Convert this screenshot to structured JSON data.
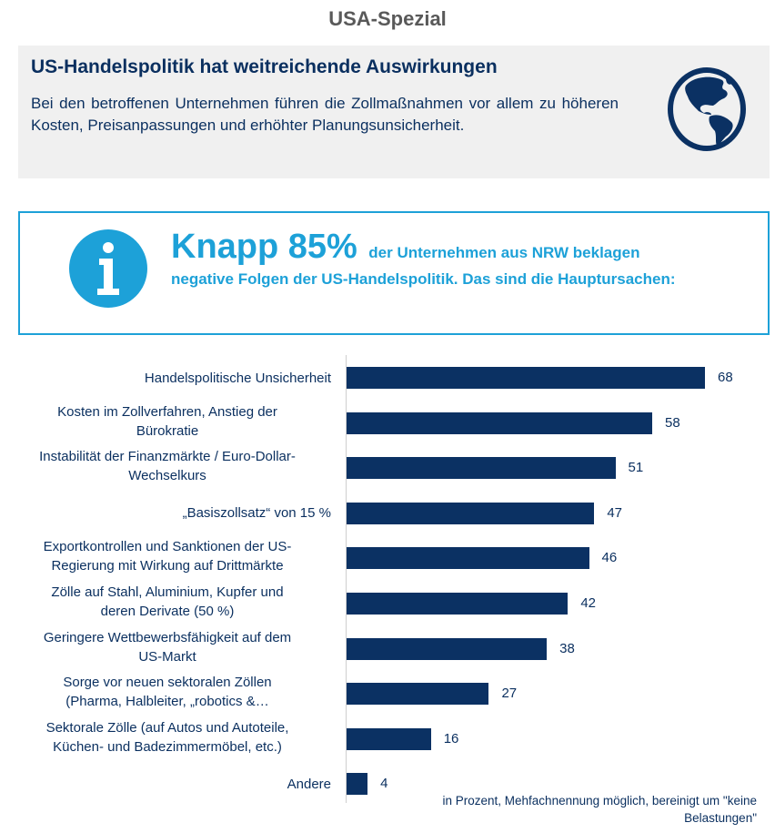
{
  "page": {
    "title": "USA-Spezial"
  },
  "summary": {
    "heading": "US-Handelspolitik hat weitreichende Auswirkungen",
    "text": "Bei den betroffenen Unternehmen führen die Zollmaßnahmen vor allem zu höheren Kosten, Preisanpassungen und erhöhter Planungsunsicherheit.",
    "icon": "globe-icon"
  },
  "info": {
    "icon": "info-icon",
    "highlight": "Knapp 85%",
    "text_inline": "der Unternehmen aus NRW beklagen",
    "text_rest": "negative Folgen der US-Handelspolitik. Das sind die Hauptursachen:"
  },
  "colors": {
    "navy": "#0b3163",
    "accent_blue": "#1da1d8",
    "title_gray": "#595959",
    "box_gray": "#f0f0f0"
  },
  "chart_data": {
    "type": "bar",
    "orientation": "horizontal",
    "title": "",
    "xlabel": "",
    "ylabel": "",
    "unit": "Prozent",
    "xlim": [
      0,
      70
    ],
    "grid": false,
    "categories": [
      "Handelspolitische Unsicherheit",
      "Kosten im Zollverfahren, Anstieg der Bürokratie",
      "Instabilität der Finanzmärkte / Euro-Dollar-Wechselkurs",
      "„Basiszollsatz“ von 15 %",
      "Exportkontrollen und Sanktionen der US-Regierung mit Wirkung auf Drittmärkte",
      "Zölle auf Stahl, Aluminium, Kupfer und deren Derivate (50 %)",
      "Geringere Wettbewerbsfähigkeit auf dem US-Markt",
      "Sorge vor neuen sektoralen Zöllen (Pharma, Halbleiter, „robotics &…",
      "Sektorale Zölle (auf Autos und Autoteile, Küchen- und Badezimmermöbel, etc.)",
      "Andere"
    ],
    "label_lines": [
      [
        "Handelspolitische Unsicherheit"
      ],
      [
        "Kosten im Zollverfahren, Anstieg der",
        "Bürokratie"
      ],
      [
        "Instabilität der Finanzmärkte / Euro-Dollar-",
        "Wechselkurs"
      ],
      [
        "„Basiszollsatz“ von 15 %"
      ],
      [
        "Exportkontrollen und Sanktionen der US-",
        "Regierung mit Wirkung auf Drittmärkte"
      ],
      [
        "Zölle auf Stahl, Aluminium, Kupfer und",
        "deren Derivate (50 %)"
      ],
      [
        "Geringere Wettbewerbsfähigkeit auf dem",
        "US-Markt"
      ],
      [
        "Sorge vor neuen sektoralen Zöllen",
        "(Pharma, Halbleiter, „robotics &…"
      ],
      [
        "Sektorale Zölle (auf Autos und Autoteile,",
        "Küchen- und Badezimmermöbel, etc.)"
      ],
      [
        "Andere"
      ]
    ],
    "values": [
      68,
      58,
      51,
      47,
      46,
      42,
      38,
      27,
      16,
      4
    ],
    "footnote": "in Prozent, Mehfachnennung möglich, bereinigt um \"keine Belastungen\""
  }
}
